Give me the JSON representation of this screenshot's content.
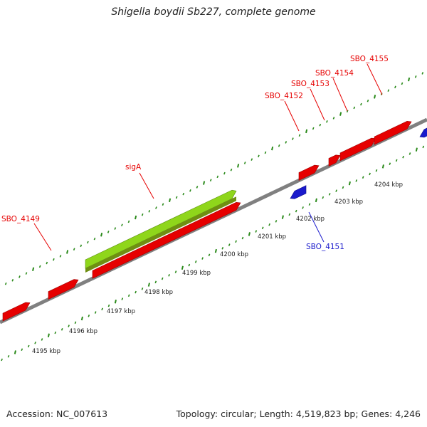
{
  "title": "Shigella boydii Sb227, complete genome",
  "footer": {
    "accession": "Accession: NC_007613",
    "summary": "Topology: circular; Length: 4,519,823 bp; Genes: 4,246"
  },
  "colors": {
    "forward": "#e60000",
    "reverse": "#1a1acc",
    "highlight": "#8fd61b",
    "backbone": "#808080",
    "ticks": "#2a8a1a"
  },
  "ticks": [
    {
      "label": "4195 kbp",
      "kbp": 4195
    },
    {
      "label": "4196 kbp",
      "kbp": 4196
    },
    {
      "label": "4197 kbp",
      "kbp": 4197
    },
    {
      "label": "4198 kbp",
      "kbp": 4198
    },
    {
      "label": "4199 kbp",
      "kbp": 4199
    },
    {
      "label": "4200 kbp",
      "kbp": 4200
    },
    {
      "label": "4201 kbp",
      "kbp": 4201
    },
    {
      "label": "4202 kbp",
      "kbp": 4202
    },
    {
      "label": "4203 kbp",
      "kbp": 4203
    },
    {
      "label": "4204 kbp",
      "kbp": 4204
    }
  ],
  "genes": [
    {
      "label": "",
      "strand": "forward"
    },
    {
      "label": "SBO_4149",
      "strand": "forward"
    },
    {
      "label": "",
      "strand": "forward"
    },
    {
      "label": "sigA",
      "strand": "forward",
      "highlight": true
    },
    {
      "label": "SBO_4151",
      "strand": "reverse"
    },
    {
      "label": "SBO_4152",
      "strand": "forward"
    },
    {
      "label": "SBO_4153",
      "strand": "forward"
    },
    {
      "label": "SBO_4154",
      "strand": "forward"
    },
    {
      "label": "SBO_4155",
      "strand": "forward"
    },
    {
      "label": "",
      "strand": "reverse"
    }
  ]
}
